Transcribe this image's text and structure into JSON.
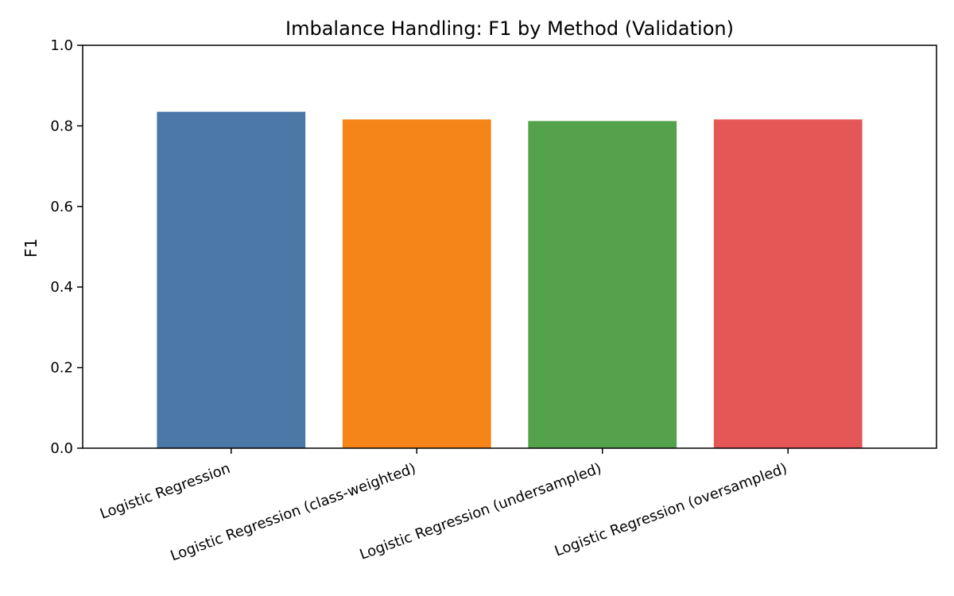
{
  "chart_data": {
    "type": "bar",
    "title": "Imbalance Handling: F1 by Method (Validation)",
    "xlabel": "",
    "ylabel": "F1",
    "categories": [
      "Logistic Regression",
      "Logistic Regression (class-weighted)",
      "Logistic Regression (undersampled)",
      "Logistic Regression (oversampled)"
    ],
    "values": [
      0.835,
      0.816,
      0.812,
      0.816
    ],
    "colors": [
      "#4c78a8",
      "#f58518",
      "#54a24b",
      "#e45756"
    ],
    "ylim": [
      0,
      1.0
    ],
    "yticks": [
      "0.0",
      "0.2",
      "0.4",
      "0.6",
      "0.8",
      "1.0"
    ],
    "grid": false,
    "legend": false
  }
}
